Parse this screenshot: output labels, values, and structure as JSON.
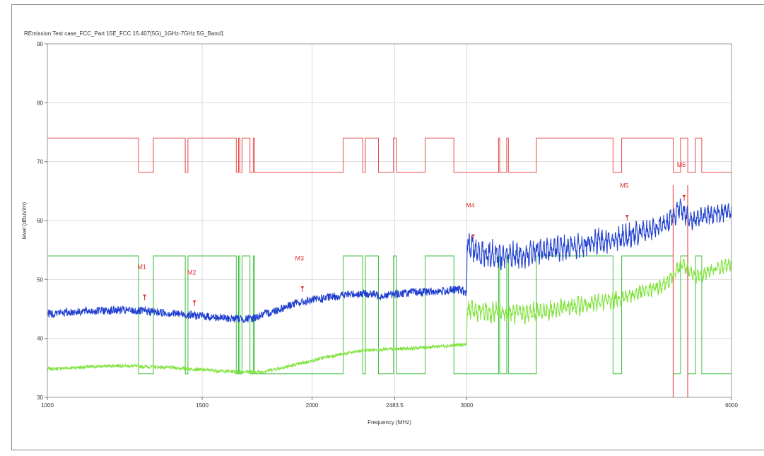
{
  "chart_data": {
    "type": "line",
    "title": "REmission Test case_FCC_Part 15E_FCC 15.407(5G)_1GHz-7GHz 5G_Band1",
    "xlabel": "Frequency (MHz)",
    "ylabel": "level (dBuV/m)",
    "x_scale": "log",
    "xlim": [
      1000,
      6000
    ],
    "ylim": [
      30,
      90
    ],
    "x_ticks": [
      {
        "value": 1000,
        "label": "1000"
      },
      {
        "value": 1500,
        "label": "1500"
      },
      {
        "value": 2000,
        "label": "2000"
      },
      {
        "value": 2483.5,
        "label": "2483.5"
      },
      {
        "value": 3000,
        "label": "3000"
      },
      {
        "value": 6000,
        "label": "6000"
      }
    ],
    "y_ticks": [
      30,
      40,
      50,
      60,
      70,
      80,
      90
    ],
    "grid": true,
    "limit_lines": [
      {
        "kind": "peak-limit",
        "color": "#e84a4a",
        "high": 74,
        "low": 68.2,
        "points": [
          [
            1000,
            74
          ],
          [
            1270,
            74
          ],
          [
            1270,
            68.2
          ],
          [
            1320,
            68.2
          ],
          [
            1320,
            74
          ],
          [
            1435,
            74
          ],
          [
            1435,
            68.2
          ],
          [
            1445,
            68.2
          ],
          [
            1445,
            74
          ],
          [
            1640,
            74
          ],
          [
            1640,
            68.2
          ],
          [
            1650,
            68.2
          ],
          [
            1650,
            74
          ],
          [
            1655,
            74
          ],
          [
            1655,
            68.2
          ],
          [
            1665,
            68.2
          ],
          [
            1665,
            74
          ],
          [
            1700,
            74
          ],
          [
            1700,
            68.2
          ],
          [
            1715,
            68.2
          ],
          [
            1715,
            74
          ],
          [
            1720,
            74
          ],
          [
            1720,
            68.2
          ],
          [
            2170,
            68.2
          ],
          [
            2170,
            74
          ],
          [
            2285,
            74
          ],
          [
            2285,
            68.2
          ],
          [
            2300,
            68.2
          ],
          [
            2300,
            74
          ],
          [
            2380,
            74
          ],
          [
            2380,
            68.2
          ],
          [
            2475,
            68.2
          ],
          [
            2475,
            74
          ],
          [
            2495,
            74
          ],
          [
            2495,
            68.2
          ],
          [
            2690,
            68.2
          ],
          [
            2690,
            74
          ],
          [
            2900,
            74
          ],
          [
            2900,
            68.2
          ],
          [
            3260,
            68.2
          ],
          [
            3260,
            74
          ],
          [
            3270,
            74
          ],
          [
            3270,
            68.2
          ],
          [
            3330,
            68.2
          ],
          [
            3330,
            74
          ],
          [
            3345,
            74
          ],
          [
            3345,
            68.2
          ],
          [
            3600,
            68.2
          ],
          [
            3600,
            74
          ],
          [
            4400,
            74
          ],
          [
            4400,
            68.2
          ],
          [
            4500,
            68.2
          ],
          [
            4500,
            74
          ],
          [
            5150,
            74
          ],
          [
            5150,
            68.2
          ],
          [
            5250,
            68.2
          ],
          [
            5250,
            74
          ],
          [
            5350,
            74
          ],
          [
            5350,
            68.2
          ],
          [
            5460,
            68.2
          ],
          [
            5460,
            74
          ],
          [
            5550,
            74
          ],
          [
            5550,
            68.2
          ],
          [
            6000,
            68.2
          ]
        ]
      },
      {
        "kind": "average-limit",
        "color": "#3cbf3c",
        "high": 54,
        "low": 34,
        "points": [
          [
            1000,
            54
          ],
          [
            1270,
            54
          ],
          [
            1270,
            34
          ],
          [
            1320,
            34
          ],
          [
            1320,
            54
          ],
          [
            1435,
            54
          ],
          [
            1435,
            34
          ],
          [
            1445,
            34
          ],
          [
            1445,
            54
          ],
          [
            1640,
            54
          ],
          [
            1640,
            34
          ],
          [
            1650,
            34
          ],
          [
            1650,
            54
          ],
          [
            1655,
            54
          ],
          [
            1655,
            34
          ],
          [
            1665,
            34
          ],
          [
            1665,
            54
          ],
          [
            1700,
            54
          ],
          [
            1700,
            34
          ],
          [
            1715,
            34
          ],
          [
            1715,
            54
          ],
          [
            1720,
            54
          ],
          [
            1720,
            34
          ],
          [
            2170,
            34
          ],
          [
            2170,
            54
          ],
          [
            2285,
            54
          ],
          [
            2285,
            34
          ],
          [
            2300,
            34
          ],
          [
            2300,
            54
          ],
          [
            2380,
            54
          ],
          [
            2380,
            34
          ],
          [
            2475,
            34
          ],
          [
            2475,
            54
          ],
          [
            2495,
            54
          ],
          [
            2495,
            34
          ],
          [
            2690,
            34
          ],
          [
            2690,
            54
          ],
          [
            2900,
            54
          ],
          [
            2900,
            34
          ],
          [
            3260,
            34
          ],
          [
            3260,
            54
          ],
          [
            3270,
            54
          ],
          [
            3270,
            34
          ],
          [
            3330,
            34
          ],
          [
            3330,
            54
          ],
          [
            3345,
            54
          ],
          [
            3345,
            34
          ],
          [
            3600,
            34
          ],
          [
            3600,
            54
          ],
          [
            4400,
            54
          ],
          [
            4400,
            34
          ],
          [
            4500,
            34
          ],
          [
            4500,
            54
          ],
          [
            5150,
            54
          ],
          [
            5150,
            34
          ],
          [
            5250,
            34
          ],
          [
            5250,
            54
          ],
          [
            5350,
            54
          ],
          [
            5350,
            34
          ],
          [
            5460,
            34
          ],
          [
            5460,
            54
          ],
          [
            5550,
            54
          ],
          [
            5550,
            34
          ],
          [
            6000,
            34
          ]
        ]
      }
    ],
    "restricted_band_lines": [
      {
        "x": 5150,
        "color": "#e84a4a"
      },
      {
        "x": 5350,
        "color": "#e84a4a"
      }
    ],
    "series": [
      {
        "kind": "peak",
        "color": "#1f3fcf",
        "points": [
          [
            1000,
            44.2
          ],
          [
            1100,
            44.6
          ],
          [
            1200,
            44.8
          ],
          [
            1300,
            44.6
          ],
          [
            1400,
            44.2
          ],
          [
            1500,
            43.8
          ],
          [
            1600,
            43.4
          ],
          [
            1700,
            43.3
          ],
          [
            1800,
            44.5
          ],
          [
            1900,
            45.8
          ],
          [
            2000,
            46.5
          ],
          [
            2100,
            47.0
          ],
          [
            2200,
            47.5
          ],
          [
            2300,
            47.6
          ],
          [
            2400,
            47.3
          ],
          [
            2500,
            47.6
          ],
          [
            2600,
            47.8
          ],
          [
            2800,
            48.0
          ],
          [
            2950,
            48.3
          ],
          [
            2999,
            47.6
          ],
          [
            3001,
            56
          ],
          [
            3100,
            54.5
          ],
          [
            3300,
            54.0
          ],
          [
            3500,
            54.2
          ],
          [
            3700,
            55.0
          ],
          [
            4000,
            55.8
          ],
          [
            4300,
            56.6
          ],
          [
            4600,
            57.5
          ],
          [
            4900,
            58.5
          ],
          [
            5100,
            60.0
          ],
          [
            5200,
            61.5
          ],
          [
            5250,
            62.5
          ],
          [
            5300,
            61.5
          ],
          [
            5380,
            59.8
          ],
          [
            5500,
            60.6
          ],
          [
            5700,
            61.0
          ],
          [
            6000,
            61.8
          ]
        ],
        "amplitude": [
          [
            1000,
            1.0
          ],
          [
            3000,
            1.0
          ],
          [
            3001,
            2.0
          ],
          [
            6000,
            1.4
          ]
        ]
      },
      {
        "kind": "average",
        "color": "#7ee23a",
        "points": [
          [
            1000,
            34.8
          ],
          [
            1200,
            35.4
          ],
          [
            1400,
            35.0
          ],
          [
            1600,
            34.4
          ],
          [
            1750,
            34.3
          ],
          [
            1900,
            35.4
          ],
          [
            2100,
            37.0
          ],
          [
            2300,
            38.0
          ],
          [
            2500,
            38.2
          ],
          [
            2700,
            38.5
          ],
          [
            2999,
            39.0
          ],
          [
            3001,
            44.8
          ],
          [
            3200,
            44.4
          ],
          [
            3500,
            44.2
          ],
          [
            3800,
            45.0
          ],
          [
            4200,
            46.0
          ],
          [
            4600,
            47.3
          ],
          [
            5000,
            48.8
          ],
          [
            5200,
            51.5
          ],
          [
            5280,
            52.8
          ],
          [
            5340,
            51.5
          ],
          [
            5450,
            50.5
          ],
          [
            5700,
            51.5
          ],
          [
            6000,
            52.8
          ]
        ],
        "amplitude": [
          [
            1000,
            0.4
          ],
          [
            3000,
            0.4
          ],
          [
            3001,
            1.5
          ],
          [
            6000,
            1.0
          ]
        ]
      }
    ],
    "markers": [
      {
        "label": "M1",
        "x": 1290,
        "y": 47.2,
        "label_y": 51.8
      },
      {
        "label": "M2",
        "x": 1470,
        "y": 46.2,
        "label_y": 50.8
      },
      {
        "label": "M3",
        "x": 1950,
        "y": 48.6,
        "label_y": 53.2
      },
      {
        "label": "M4",
        "x": 3050,
        "y": 57.4,
        "label_y": 62.2
      },
      {
        "label": "M5",
        "x": 4565,
        "y": 60.7,
        "label_y": 65.6
      },
      {
        "label": "M6",
        "x": 5300,
        "y": 64.1,
        "label_y": 69.1
      }
    ]
  }
}
